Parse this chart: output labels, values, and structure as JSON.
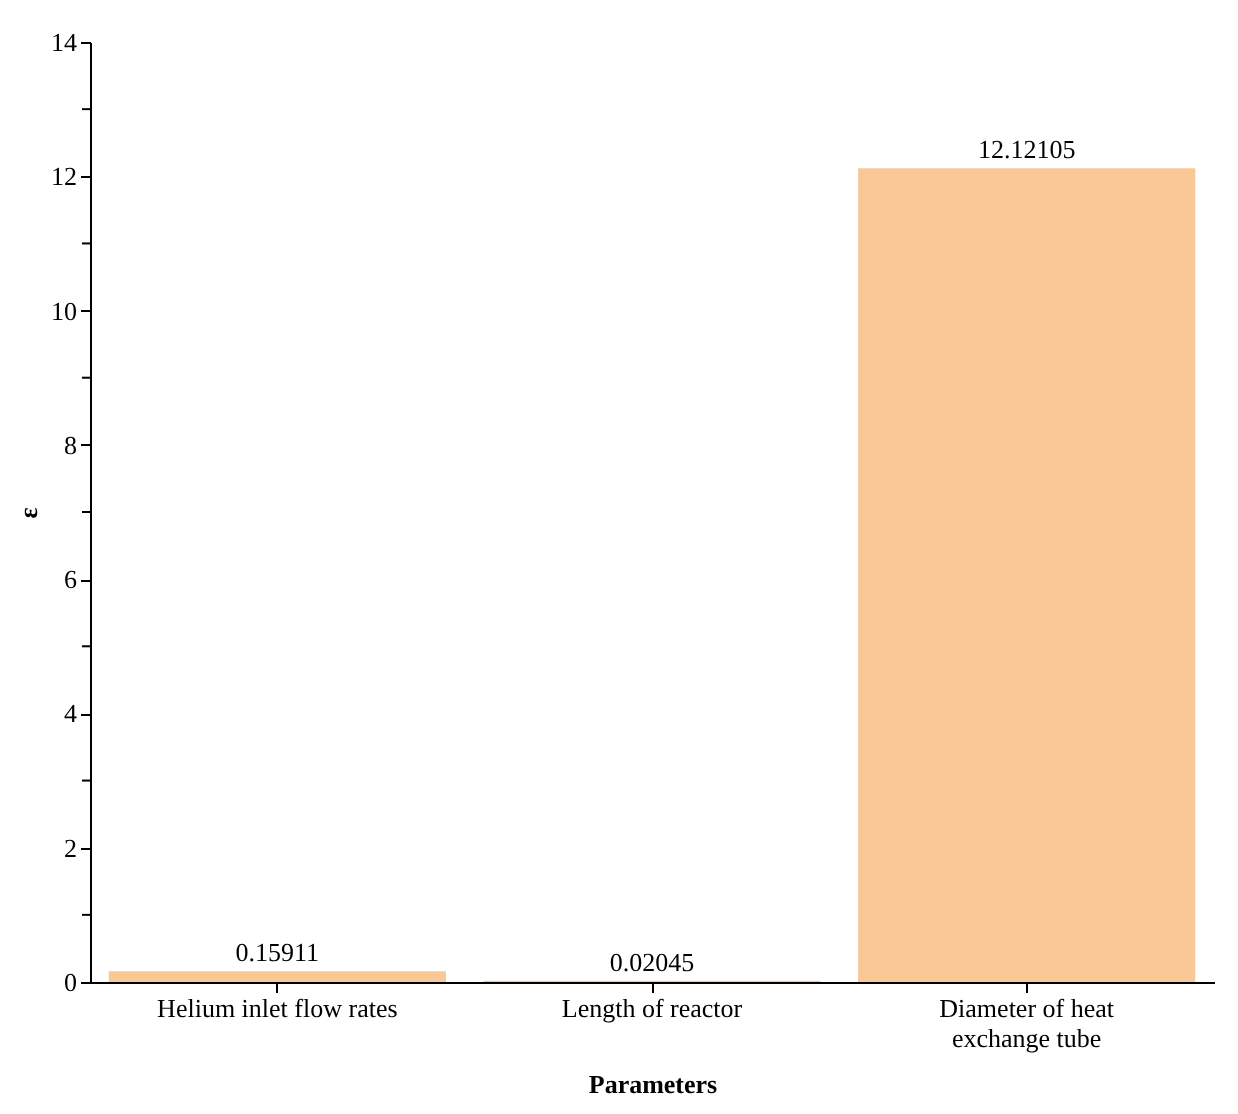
{
  "chart_data": {
    "type": "bar",
    "xlabel": "Parameters",
    "ylabel": "ε",
    "categories": [
      "Helium inlet flow rates",
      "Length of reactor",
      "Diameter of heat exchange tube"
    ],
    "values": [
      0.15911,
      0.02045,
      12.12105
    ],
    "color": "#f9c897",
    "data_labels": true,
    "ylim": [
      0,
      14
    ],
    "yticks": [
      0,
      {
        "value": 1,
        "label": null
      },
      2,
      {
        "value": 3,
        "label": null
      },
      4,
      {
        "value": 5,
        "label": null
      },
      6,
      {
        "value": 7,
        "label": null
      },
      8,
      {
        "value": 9,
        "label": null
      },
      10,
      {
        "value": 11,
        "label": null
      },
      12,
      {
        "value": 13,
        "label": null
      },
      14
    ],
    "grid": false
  }
}
